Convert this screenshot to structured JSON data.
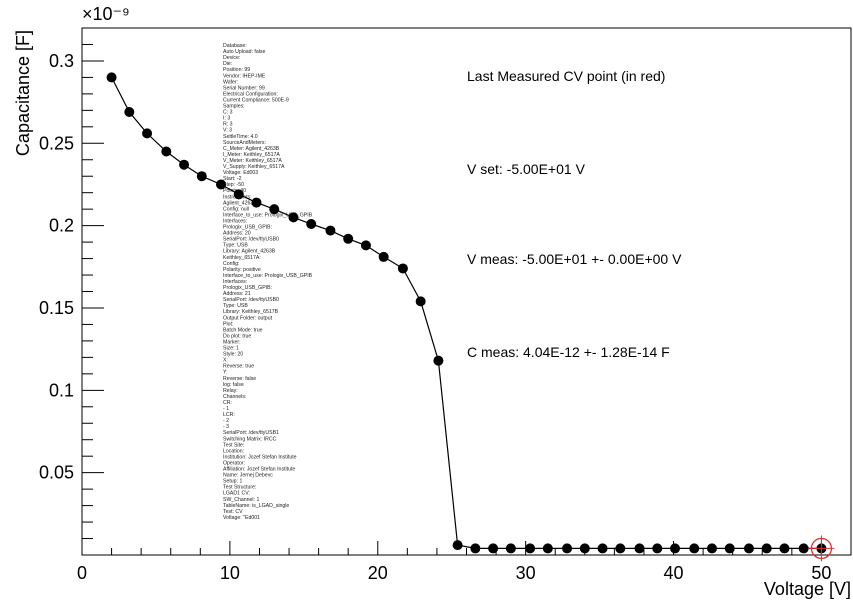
{
  "chart_data": {
    "type": "scatter",
    "title": "",
    "xlabel": "Voltage [V]",
    "ylabel": "Capacitance [F]",
    "y_exponent_label": "×10⁻⁹",
    "xlim": [
      0,
      52
    ],
    "ylim": [
      0,
      0.32
    ],
    "x_ticks": [
      0,
      10,
      20,
      30,
      40,
      50
    ],
    "y_ticks": [
      0.05,
      0.1,
      0.15,
      0.2,
      0.25,
      0.3
    ],
    "x_tick_labels": [
      "0",
      "10",
      "20",
      "30",
      "40",
      "50"
    ],
    "y_tick_labels": [
      "0.05",
      "0.1",
      "0.15",
      "0.2",
      "0.25",
      "0.3"
    ],
    "grid": false,
    "marker": "filled-circle",
    "line_color": "#000000",
    "highlight_color": "#e03030",
    "series": [
      {
        "x": [
          2,
          3.2,
          4.4,
          5.7,
          6.9,
          8.1,
          9.4,
          10.6,
          11.8,
          13.0,
          14.3,
          15.5,
          16.8,
          18.0,
          19.2,
          20.4,
          21.7,
          22.9,
          24.1,
          25.4,
          26.6,
          27.8,
          29.0,
          30.3,
          31.5,
          32.8,
          34.0,
          35.2,
          36.4,
          37.7,
          38.9,
          40.1,
          41.4,
          42.6,
          43.8,
          45.1,
          46.3,
          47.5,
          48.8,
          50.0
        ],
        "y": [
          0.29,
          0.269,
          0.256,
          0.245,
          0.237,
          0.23,
          0.225,
          0.219,
          0.214,
          0.21,
          0.205,
          0.201,
          0.197,
          0.192,
          0.188,
          0.181,
          0.174,
          0.154,
          0.118,
          0.006,
          0.004,
          0.004,
          0.004,
          0.004,
          0.004,
          0.004,
          0.004,
          0.004,
          0.004,
          0.004,
          0.004,
          0.004,
          0.004,
          0.004,
          0.004,
          0.004,
          0.004,
          0.004,
          0.004,
          0.004
        ]
      }
    ],
    "highlight_point": {
      "x": 50.0,
      "y": 0.004
    },
    "annotations": [
      "Last Measured CV point (in red)",
      "V set:  -5.00E+01 V",
      "V meas: -5.00E+01 +- 0.00E+00 V",
      "C meas: 4.04E-12 +- 1.28E-14 F"
    ],
    "config_text": [
      "Database:",
      "  Auto Upload: false",
      "Device:",
      "  Die:",
      "    Position: 99",
      "  Vendor: IHEP-IME",
      "  Wafer:",
      "    Serial Number: 99",
      "Electrical Configuration:",
      "  Current Compliance: 500E-9",
      "  Samples:",
      "    C: 3",
      "    I: 3",
      "    R: 3",
      "    V: 3",
      "  SettleTime: 4.0",
      "  SourceAndMeters:",
      "    C_Meter: Agilent_4263B",
      "    I_Meter: Keithley_6517A",
      "    V_Meter: Keithley_6517A",
      "    V_Supply: Keithley_6517A",
      "  Voltage: Ed003",
      "    Start: -2",
      "    Step: -50",
      "    Points: 40",
      "Instruments:",
      "  Agilent_4263B:",
      "    Config: null",
      "    Interface_to_use: Prologix_USB_GPIB",
      "    Interfaces:",
      "      Prologix_USB_GPIB:",
      "        Address: 20",
      "        SerialPort: /dev/ttyUSB0",
      "        Type: USB",
      "    Library: Agilent_4263B",
      "  Keithley_6517A:",
      "    Config:",
      "      Polarity: positive",
      "    Interface_to_use: Prologix_USB_GPIB",
      "    Interfaces:",
      "      Prologix_USB_GPIB:",
      "        Address: 21",
      "        SerialPort: /dev/ttyUSB0",
      "        Type: USB",
      "    Library: Keithley_6517B",
      "Output Folder: output",
      "Plot:",
      "  Batch Mode: true",
      "  Do plot: true",
      "  Marker:",
      "    Size: 1",
      "    Style: 20",
      "  X:",
      "    Reverse: true",
      "  Y:",
      "    Reverse: false",
      "    log: false",
      "Relay:",
      "  Channels:",
      "    CR:",
      "      - 1",
      "    LCR:",
      "      - 2",
      "      - 3",
      "  SerialPort: /dev/ttyUSB1",
      "Switching Matrix: IRCC",
      "Test Site:",
      "  Location:",
      "    Institution: Jozef Stefan Institute",
      "  Operator:",
      "    Affiliation: Jozef Stefan Institute",
      "    Name: Jernej Debevc",
      "  Setup: 1",
      "Test Structure:",
      "  LGAD1 CV:",
      "    SW_Channel: 1",
      "    TableName: is_LGAD_single",
      "    Test: CV",
      "    Voltage: \"Ed001"
    ]
  }
}
